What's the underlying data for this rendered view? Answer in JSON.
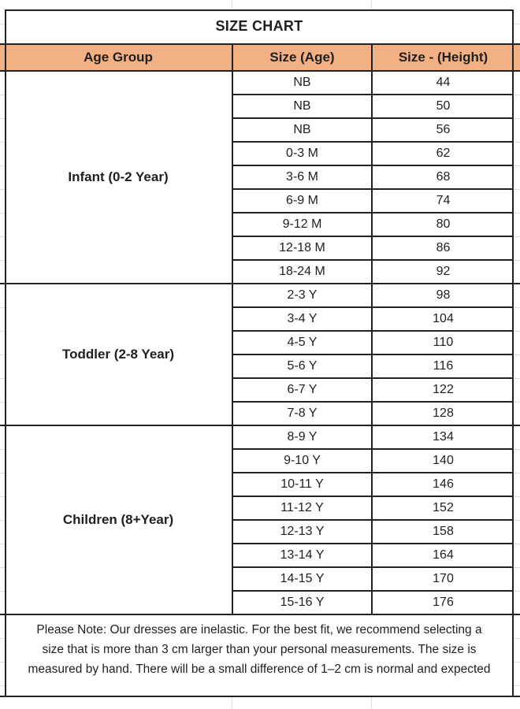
{
  "title": "SIZE CHART",
  "columns": {
    "age_group": "Age Group",
    "size_age": "Size (Age)",
    "size_height": "Size - (Height)"
  },
  "groups": [
    {
      "label": "Infant (0-2 Year)",
      "rows": [
        {
          "size": "NB",
          "height": "44"
        },
        {
          "size": "NB",
          "height": "50"
        },
        {
          "size": "NB",
          "height": "56"
        },
        {
          "size": "0-3 M",
          "height": "62"
        },
        {
          "size": "3-6 M",
          "height": "68"
        },
        {
          "size": "6-9 M",
          "height": "74"
        },
        {
          "size": "9-12 M",
          "height": "80"
        },
        {
          "size": "12-18 M",
          "height": "86"
        },
        {
          "size": "18-24 M",
          "height": "92"
        }
      ]
    },
    {
      "label": "Toddler (2-8 Year)",
      "rows": [
        {
          "size": "2-3 Y",
          "height": "98"
        },
        {
          "size": "3-4 Y",
          "height": "104"
        },
        {
          "size": "4-5 Y",
          "height": "110"
        },
        {
          "size": "5-6 Y",
          "height": "116"
        },
        {
          "size": "6-7 Y",
          "height": "122"
        },
        {
          "size": "7-8 Y",
          "height": "128"
        }
      ]
    },
    {
      "label": "Children (8+Year)",
      "rows": [
        {
          "size": "8-9 Y",
          "height": "134"
        },
        {
          "size": "9-10 Y",
          "height": "140"
        },
        {
          "size": "10-11 Y",
          "height": "146"
        },
        {
          "size": "11-12 Y",
          "height": "152"
        },
        {
          "size": "12-13 Y",
          "height": "158"
        },
        {
          "size": "13-14 Y",
          "height": "164"
        },
        {
          "size": "14-15 Y",
          "height": "170"
        },
        {
          "size": "15-16 Y",
          "height": "176"
        }
      ]
    }
  ],
  "note": "Please Note: Our dresses are inelastic. For the best fit, we recommend selecting a size that is more than 3 cm larger than your personal measurements. The size is measured by hand. There will be a small difference of 1–2 cm is normal and expected",
  "colors": {
    "header_bg": "#F3B083",
    "border": "#222222",
    "text": "#1F1F1F",
    "gridline": "#DCDCDC"
  }
}
